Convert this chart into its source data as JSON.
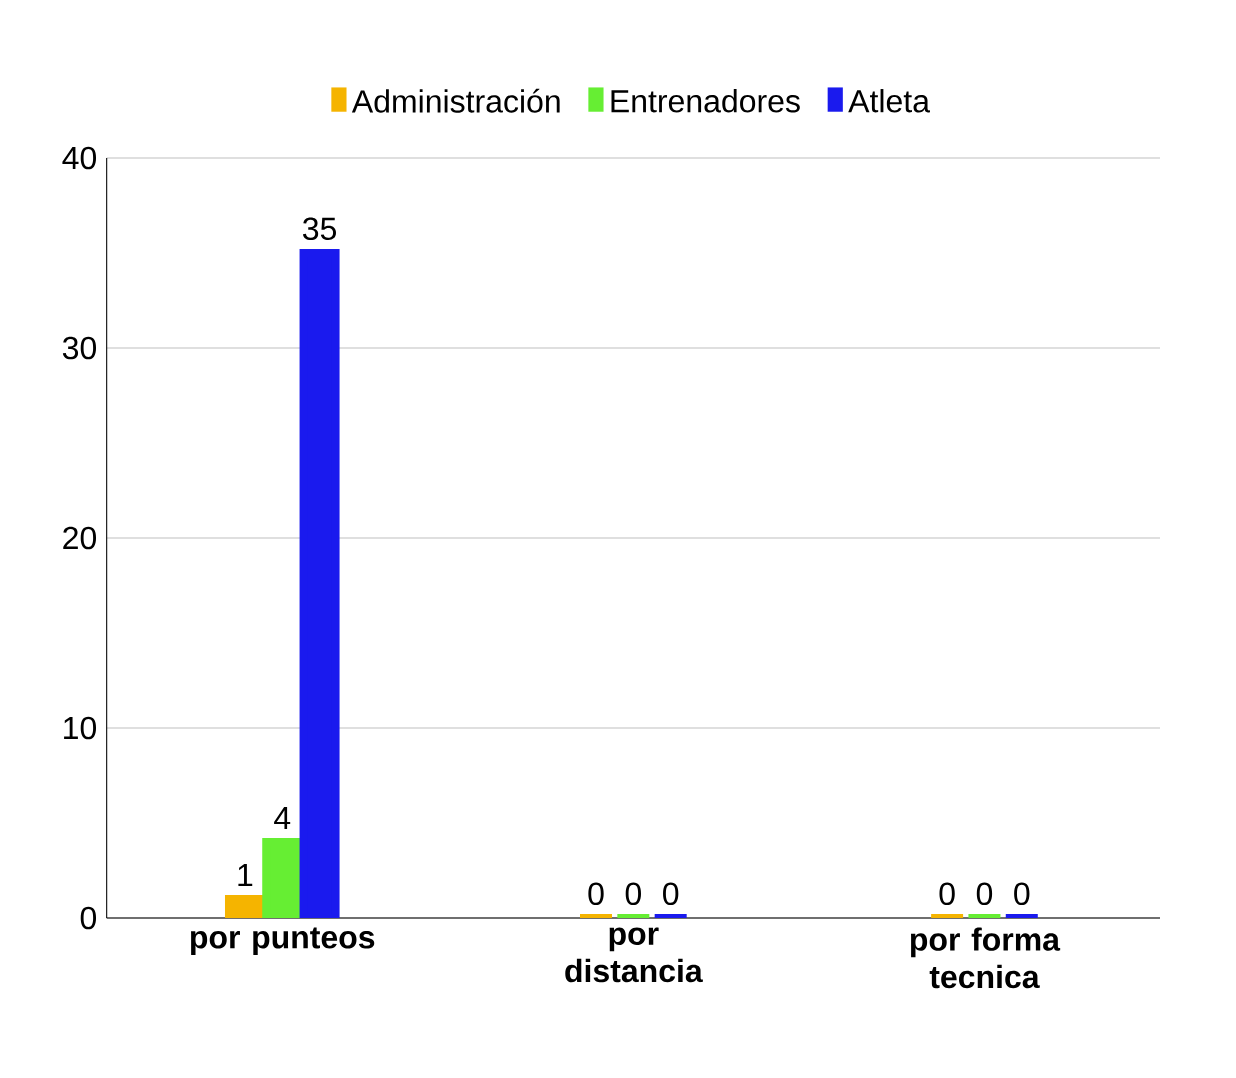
{
  "chart_data": {
    "type": "bar",
    "categories": [
      "por punteos",
      "por distancia",
      "por forma tecnica"
    ],
    "series": [
      {
        "name": "Administración",
        "color": "#f5b400",
        "values": [
          1,
          0,
          0
        ]
      },
      {
        "name": "Entrenadores",
        "color": "#66ee33",
        "values": [
          4,
          0,
          0
        ]
      },
      {
        "name": "Atleta",
        "color": "#1a1aee",
        "values": [
          35,
          0,
          0
        ]
      }
    ],
    "ylim": [
      0,
      40
    ],
    "yticks": [
      0,
      10,
      20,
      30,
      40
    ],
    "grid": "y",
    "legend": "top",
    "data_labels": true
  }
}
